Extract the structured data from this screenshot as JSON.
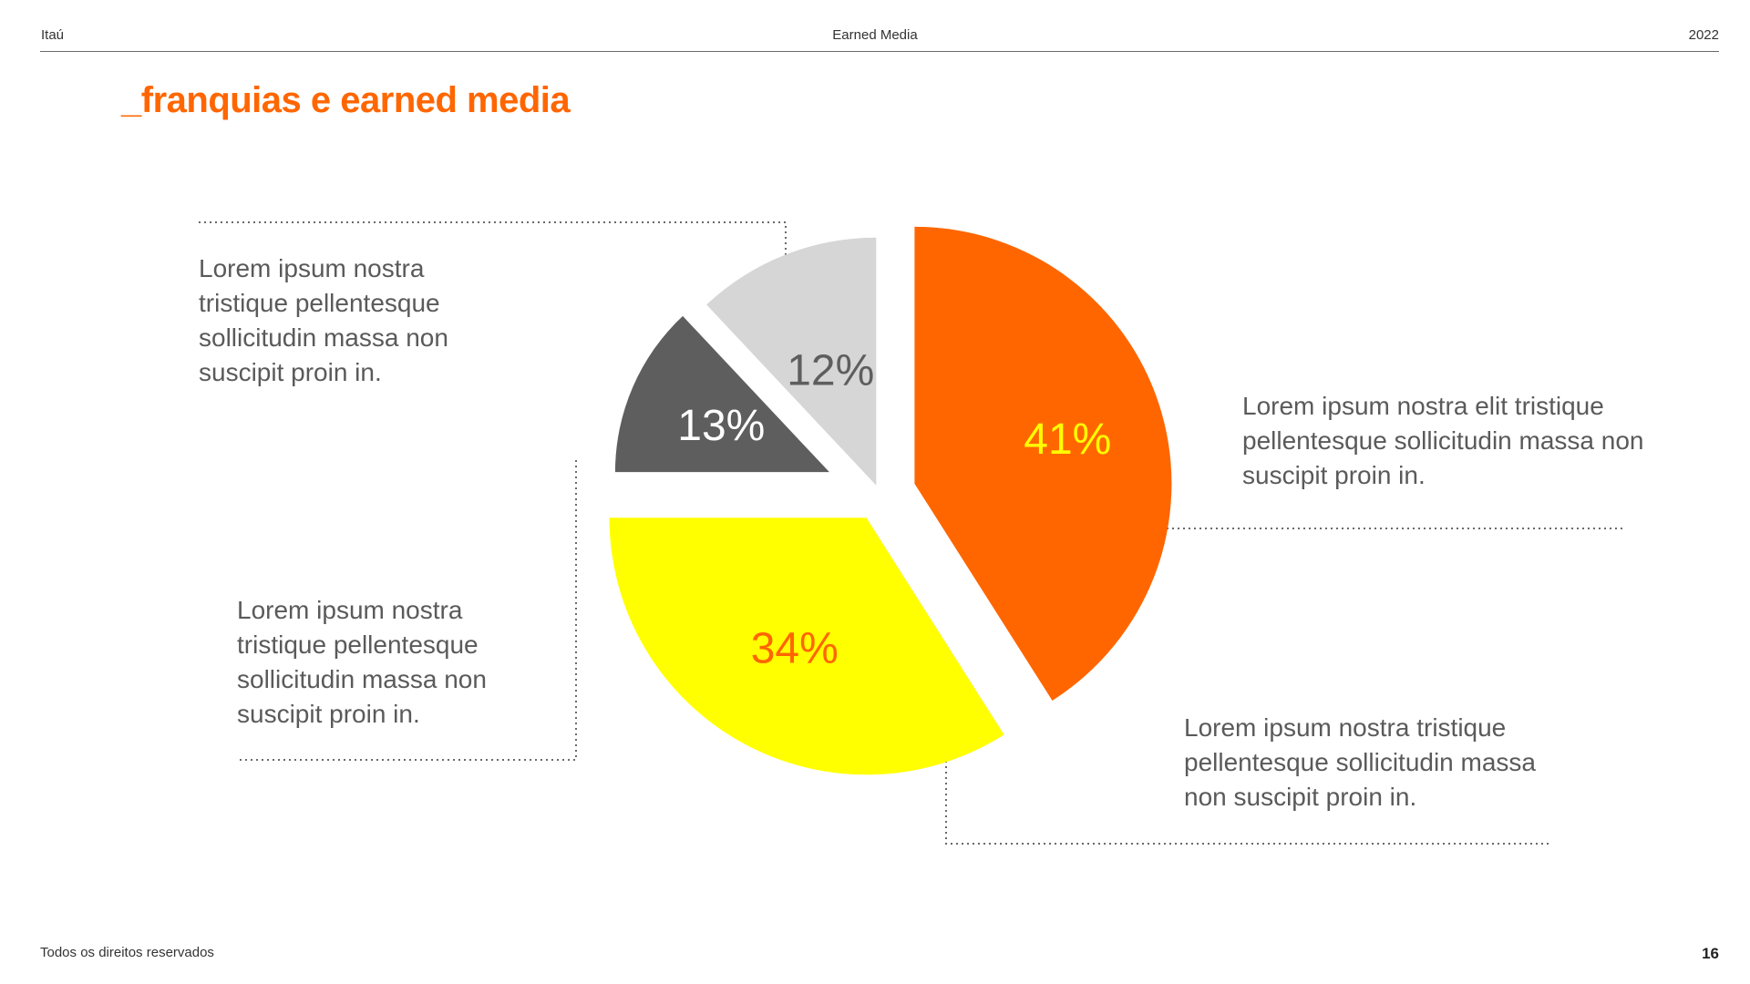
{
  "header": {
    "left": "Itaú",
    "center": "Earned Media",
    "right": "2022"
  },
  "title": "_franquias e earned media",
  "footer": {
    "left": "Todos os direitos reservados",
    "page_number": "16"
  },
  "callouts": [
    "Lorem ipsum nostra tristique pellentesque sollicitudin massa non suscipit proin in.",
    "Lorem ipsum nostra elit tristique pellentesque sollicitudin massa non suscipit proin in.",
    "Lorem ipsum nostra tristique pellentesque sollicitudin massa non suscipit proin in.",
    "Lorem ipsum nostra tristique pellentesque sollicitudin massa non suscipit proin in."
  ],
  "colors": {
    "accent": "#ff6600",
    "yellow": "#ffff00",
    "dark_gray": "#5e5e5e",
    "light_gray": "#d6d6d6"
  },
  "chart_data": {
    "type": "pie",
    "exploded": true,
    "slices": [
      {
        "label": "41%",
        "value": 41,
        "color": "#ff6600",
        "label_color": "#ffff00"
      },
      {
        "label": "34%",
        "value": 34,
        "color": "#ffff00",
        "label_color": "#ff6600"
      },
      {
        "label": "13%",
        "value": 13,
        "color": "#5e5e5e",
        "label_color": "#ffffff"
      },
      {
        "label": "12%",
        "value": 12,
        "color": "#d6d6d6",
        "label_color": "#5e5e5e"
      }
    ]
  }
}
